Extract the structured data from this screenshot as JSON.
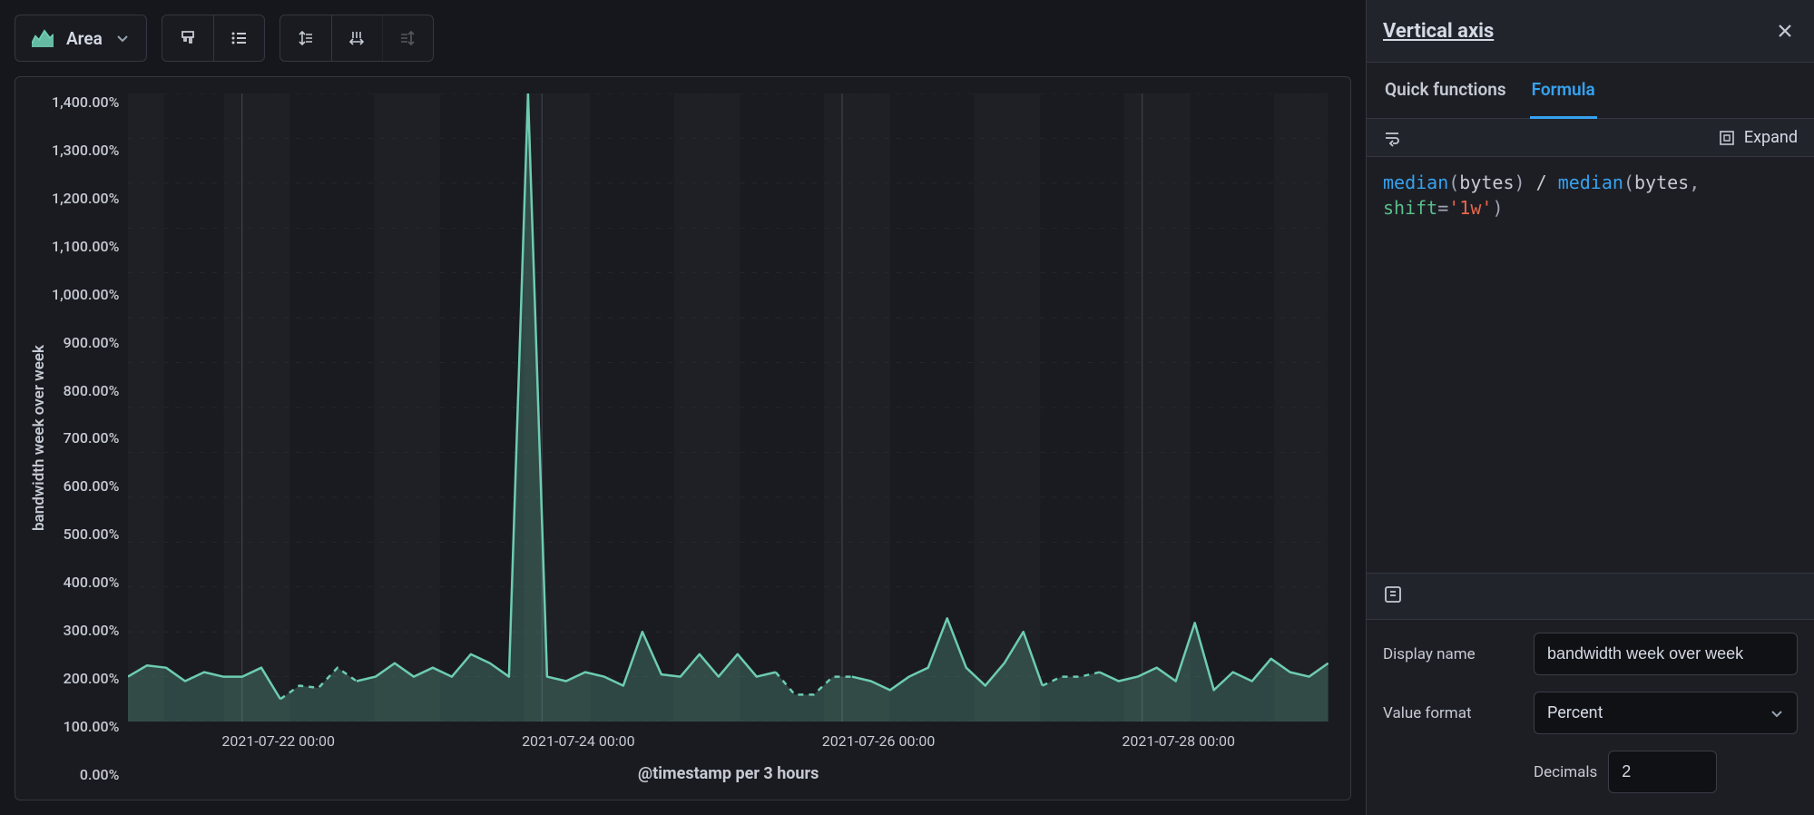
{
  "toolbar": {
    "chart_type_label": "Area"
  },
  "chart": {
    "type": "area",
    "y_axis_title": "bandwidth week over week",
    "x_axis_title": "@timestamp per 3 hours",
    "y_ticks": [
      "1,400.00%",
      "1,300.00%",
      "1,200.00%",
      "1,100.00%",
      "1,000.00%",
      "900.00%",
      "800.00%",
      "700.00%",
      "600.00%",
      "500.00%",
      "400.00%",
      "300.00%",
      "200.00%",
      "100.00%",
      "0.00%"
    ],
    "x_ticks": [
      "2021-07-22 00:00",
      "2021-07-24 00:00",
      "2021-07-26 00:00",
      "2021-07-28 00:00"
    ],
    "ylim": [
      0,
      1400
    ],
    "x_count": 64,
    "series_values": [
      100,
      125,
      120,
      90,
      110,
      100,
      100,
      120,
      50,
      80,
      75,
      120,
      90,
      100,
      130,
      100,
      120,
      100,
      150,
      130,
      100,
      1400,
      100,
      90,
      110,
      100,
      80,
      200,
      105,
      100,
      150,
      100,
      150,
      100,
      110,
      60,
      60,
      100,
      100,
      90,
      70,
      100,
      120,
      230,
      120,
      80,
      130,
      200,
      80,
      100,
      100,
      110,
      90,
      100,
      120,
      90,
      220,
      70,
      110,
      90,
      140,
      110,
      100,
      130
    ],
    "series_dashed_idx": [
      8,
      9,
      10,
      11,
      34,
      35,
      36,
      37,
      48,
      49,
      50
    ],
    "bands": [
      {
        "start": 0,
        "end": 0.03
      },
      {
        "start": 0.08,
        "end": 0.135
      },
      {
        "start": 0.205,
        "end": 0.26
      },
      {
        "start": 0.33,
        "end": 0.385
      },
      {
        "start": 0.455,
        "end": 0.51
      },
      {
        "start": 0.58,
        "end": 0.635
      },
      {
        "start": 0.705,
        "end": 0.76
      },
      {
        "start": 0.83,
        "end": 0.885
      },
      {
        "start": 0.955,
        "end": 1.0
      }
    ],
    "vlines": [
      0.095,
      0.345,
      0.595,
      0.845
    ],
    "colors": {
      "background": "#1a1b20",
      "grid": "#2a2c33",
      "series_line": "#6dccb1",
      "series_fill": "rgba(109,204,177,0.25)",
      "tick_text": "#c5cad3"
    }
  },
  "panel": {
    "title": "Vertical axis",
    "tabs": {
      "quick": "Quick functions",
      "formula": "Formula"
    },
    "active_tab": "formula",
    "expand_label": "Expand",
    "formula_tokens": [
      {
        "t": "fn",
        "v": "median"
      },
      {
        "t": "p",
        "v": "("
      },
      {
        "t": "var",
        "v": "bytes"
      },
      {
        "t": "p",
        "v": ")"
      },
      {
        "t": "var",
        "v": " / "
      },
      {
        "t": "fn",
        "v": "median"
      },
      {
        "t": "p",
        "v": "("
      },
      {
        "t": "var",
        "v": "bytes"
      },
      {
        "t": "p",
        "v": ", "
      },
      {
        "t": "br"
      },
      {
        "t": "kw",
        "v": "shift"
      },
      {
        "t": "p",
        "v": "="
      },
      {
        "t": "str",
        "v": "'1w'"
      },
      {
        "t": "p",
        "v": ")"
      }
    ],
    "form": {
      "display_name_label": "Display name",
      "display_name_value": "bandwidth week over week",
      "value_format_label": "Value format",
      "value_format_value": "Percent",
      "decimals_label": "Decimals",
      "decimals_value": "2"
    }
  }
}
